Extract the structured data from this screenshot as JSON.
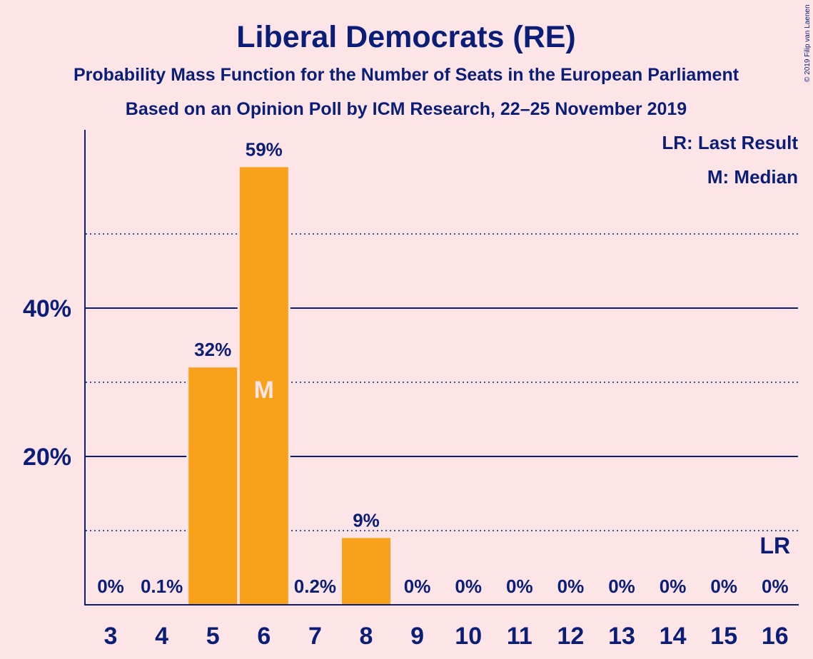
{
  "colors": {
    "background": "#fde4e7",
    "text": "#0a1e78",
    "bar": "#f9a11b",
    "median_marker": "#fde4e7"
  },
  "copyright": "© 2019 Filip van Laenen",
  "legend": {
    "lr": "LR: Last Result",
    "m": "M: Median",
    "placement": "top-right"
  },
  "chart_data": {
    "type": "bar",
    "title": "Liberal Democrats (RE)",
    "subtitle": "Probability Mass Function for the Number of Seats in the European Parliament",
    "subtitle2": "Based on an Opinion Poll by ICM Research, 22–25 November 2019",
    "xlabel": "",
    "ylabel": "",
    "categories": [
      "3",
      "4",
      "5",
      "6",
      "7",
      "8",
      "9",
      "10",
      "11",
      "12",
      "13",
      "14",
      "15",
      "16"
    ],
    "values": [
      0,
      0.1,
      32,
      59,
      0.2,
      9,
      0,
      0,
      0,
      0,
      0,
      0,
      0,
      0
    ],
    "labels": [
      "0%",
      "0.1%",
      "32%",
      "59%",
      "0.2%",
      "9%",
      "0%",
      "0%",
      "0%",
      "0%",
      "0%",
      "0%",
      "0%",
      "0%"
    ],
    "ylim": [
      0,
      64
    ],
    "y_ticks": [
      {
        "value": 20,
        "label": "20%"
      },
      {
        "value": 40,
        "label": "40%"
      }
    ],
    "solid_gridlines": [
      20,
      40
    ],
    "dotted_gridlines": [
      10,
      30,
      50
    ],
    "median": {
      "category": "6",
      "label": "M"
    },
    "last_result": {
      "category": "16",
      "label": "LR"
    }
  }
}
